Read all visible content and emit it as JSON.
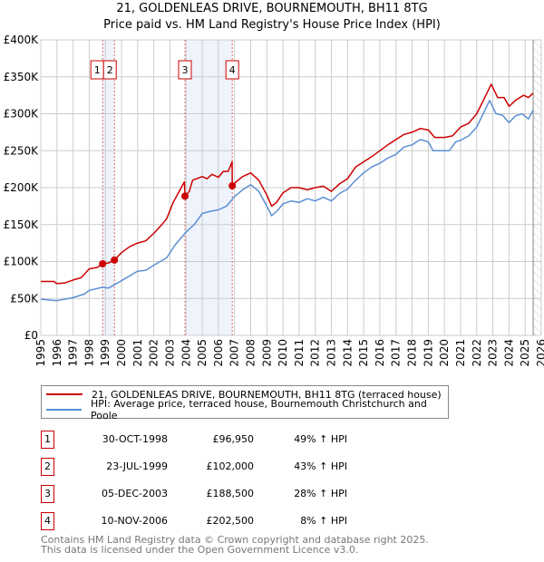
{
  "title": "21, GOLDENLEAS DRIVE, BOURNEMOUTH, BH11 8TG",
  "subtitle": "Price paid vs. HM Land Registry's House Price Index (HPI)",
  "chart_data": {
    "type": "line",
    "title": "21, GOLDENLEAS DRIVE, BOURNEMOUTH, BH11 8TG",
    "subtitle": "Price paid vs. HM Land Registry's House Price Index (HPI)",
    "xlim": [
      1995,
      2026
    ],
    "ylim": [
      0,
      400000
    ],
    "x_ticks": [
      "1995",
      "1996",
      "1997",
      "1998",
      "1999",
      "2000",
      "2001",
      "2002",
      "2003",
      "2004",
      "2005",
      "2006",
      "2007",
      "2008",
      "2009",
      "2010",
      "2011",
      "2012",
      "2013",
      "2014",
      "2015",
      "2016",
      "2017",
      "2018",
      "2019",
      "2020",
      "2021",
      "2022",
      "2023",
      "2024",
      "2025",
      "2026"
    ],
    "y_ticks": [
      {
        "v": 0,
        "l": "£0"
      },
      {
        "v": 50000,
        "l": "£50K"
      },
      {
        "v": 100000,
        "l": "£100K"
      },
      {
        "v": 150000,
        "l": "£150K"
      },
      {
        "v": 200000,
        "l": "£200K"
      },
      {
        "v": 250000,
        "l": "£250K"
      },
      {
        "v": 300000,
        "l": "£300K"
      },
      {
        "v": 350000,
        "l": "£350K"
      },
      {
        "v": 400000,
        "l": "£400K"
      }
    ],
    "grid": true,
    "series": [
      {
        "name": "21, GOLDENLEAS DRIVE, BOURNEMOUTH, BH11 8TG (terraced house)",
        "color": "#cc0000",
        "x": [
          1995,
          1995.8,
          1996,
          1996.5,
          1997,
          1997.5,
          1998,
          1998.5,
          1998.83,
          1999.2,
          1999.56,
          2000,
          2000.5,
          2001,
          2001.5,
          2002,
          2002.5,
          2002.8,
          2003.2,
          2003.7,
          2003.9,
          2003.93,
          2004.2,
          2004.4,
          2005,
          2005.3,
          2005.6,
          2006,
          2006.3,
          2006.6,
          2006.8,
          2006.85,
          2006.86,
          2007.1,
          2007.5,
          2008,
          2008.5,
          2009,
          2009.3,
          2009.6,
          2010,
          2010.5,
          2011,
          2011.5,
          2012,
          2012.5,
          2013,
          2013.5,
          2014,
          2014.5,
          2015,
          2015.5,
          2016,
          2016.5,
          2017,
          2017.5,
          2018,
          2018.5,
          2019,
          2019.4,
          2020,
          2020.5,
          2021,
          2021.5,
          2022,
          2022.5,
          2022.9,
          2023.3,
          2023.7,
          2024,
          2024.4,
          2024.9,
          2025.2,
          2025.5
        ],
        "values": [
          73000,
          73000,
          70000,
          71000,
          75000,
          78000,
          90000,
          92000,
          96950,
          98000,
          102000,
          112000,
          120000,
          125000,
          128000,
          138000,
          150000,
          158000,
          180000,
          200000,
          208000,
          188500,
          195000,
          210000,
          215000,
          212000,
          218000,
          214000,
          222000,
          222000,
          232000,
          235000,
          202500,
          208000,
          215000,
          220000,
          210000,
          190000,
          175000,
          180000,
          193000,
          200000,
          200000,
          197000,
          200000,
          202000,
          195000,
          205000,
          212000,
          228000,
          235000,
          242000,
          250000,
          258000,
          265000,
          272000,
          275000,
          280000,
          278000,
          268000,
          268000,
          270000,
          282000,
          287000,
          300000,
          322000,
          340000,
          322000,
          322000,
          310000,
          318000,
          325000,
          322000,
          328000
        ]
      },
      {
        "name": "HPI: Average price, terraced house, Bournemouth Christchurch and Poole",
        "color": "#5b8fd4",
        "x": [
          1995,
          1996,
          1997,
          1997.7,
          1998,
          1998.8,
          1999.2,
          2000,
          2001,
          2001.5,
          2002,
          2002.8,
          2003.3,
          2004,
          2004.5,
          2005,
          2005.5,
          2006,
          2006.5,
          2007,
          2007.5,
          2008,
          2008.5,
          2009,
          2009.3,
          2009.7,
          2010,
          2010.5,
          2011,
          2011.5,
          2012,
          2012.5,
          2013,
          2013.5,
          2014,
          2014.5,
          2015,
          2015.5,
          2016,
          2016.5,
          2017,
          2017.5,
          2018,
          2018.5,
          2019,
          2019.3,
          2020,
          2020.3,
          2020.7,
          2021,
          2021.5,
          2022,
          2022.4,
          2022.8,
          2023.2,
          2023.6,
          2024,
          2024.4,
          2024.8,
          2025.2,
          2025.5
        ],
        "values": [
          49000,
          47000,
          51000,
          56000,
          61000,
          65000,
          64000,
          74000,
          87000,
          88000,
          95000,
          105000,
          122000,
          140000,
          150000,
          165000,
          168000,
          170000,
          175000,
          188000,
          197000,
          204000,
          195000,
          175000,
          162000,
          170000,
          178000,
          182000,
          180000,
          185000,
          182000,
          187000,
          182000,
          192000,
          198000,
          210000,
          220000,
          228000,
          233000,
          240000,
          245000,
          255000,
          258000,
          265000,
          262000,
          250000,
          250000,
          250000,
          262000,
          264000,
          270000,
          282000,
          300000,
          318000,
          300000,
          298000,
          288000,
          297000,
          300000,
          293000,
          305000
        ]
      }
    ],
    "transactions": [
      {
        "n": "1",
        "x": 1998.83,
        "price": 96950
      },
      {
        "n": "2",
        "x": 1999.56,
        "price": 102000
      },
      {
        "n": "3",
        "x": 2003.93,
        "price": 188500
      },
      {
        "n": "4",
        "x": 2006.86,
        "price": 202500
      }
    ],
    "shaded_ranges": [
      [
        1998.83,
        1999.56
      ],
      [
        2003.93,
        2006.86
      ]
    ],
    "forecast_start": 2025.5
  },
  "legend": {
    "property": "21, GOLDENLEAS DRIVE, BOURNEMOUTH, BH11 8TG (terraced house)",
    "hpi": "HPI: Average price, terraced house, Bournemouth Christchurch and Poole"
  },
  "table": [
    {
      "n": "1",
      "date": "30-OCT-1998",
      "price": "£96,950",
      "hpi": "49% ↑ HPI"
    },
    {
      "n": "2",
      "date": "23-JUL-1999",
      "price": "£102,000",
      "hpi": "43% ↑ HPI"
    },
    {
      "n": "3",
      "date": "05-DEC-2003",
      "price": "£188,500",
      "hpi": "28% ↑ HPI"
    },
    {
      "n": "4",
      "date": "10-NOV-2006",
      "price": "£202,500",
      "hpi": "8% ↑ HPI"
    }
  ],
  "footer": {
    "line1": "Contains HM Land Registry data © Crown copyright and database right 2025.",
    "line2": "This data is licensed under the Open Government Licence v3.0."
  }
}
